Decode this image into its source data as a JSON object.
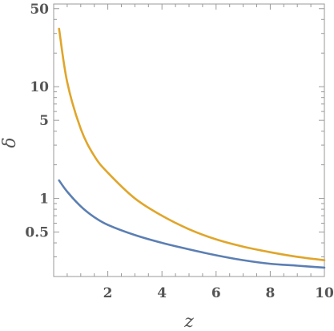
{
  "chart_data": {
    "type": "line",
    "xlabel": "z",
    "ylabel": "δ",
    "xlim": [
      0,
      10
    ],
    "ylim": [
      0.2,
      55
    ],
    "yscale": "log",
    "grid": false,
    "x_ticks": [
      2,
      4,
      6,
      8,
      10
    ],
    "y_ticks": [
      0.5,
      1,
      5,
      10,
      50
    ],
    "colors": {
      "series_1": "#E0A52A",
      "series_2": "#5B7FB3"
    },
    "series": [
      {
        "color": "#E0A52A",
        "x": [
          0.2,
          0.5,
          1,
          1.5,
          2,
          3,
          4,
          5,
          6,
          7,
          8,
          9,
          10
        ],
        "y": [
          33,
          11,
          4.2,
          2.4,
          1.7,
          1.0,
          0.7,
          0.53,
          0.43,
          0.37,
          0.33,
          0.3,
          0.28
        ]
      },
      {
        "color": "#5B7FB3",
        "x": [
          0.2,
          0.5,
          1,
          1.5,
          2,
          3,
          4,
          5,
          6,
          7,
          8,
          9,
          10
        ],
        "y": [
          1.45,
          1.15,
          0.85,
          0.68,
          0.58,
          0.47,
          0.4,
          0.35,
          0.31,
          0.28,
          0.26,
          0.25,
          0.24
        ]
      }
    ]
  }
}
